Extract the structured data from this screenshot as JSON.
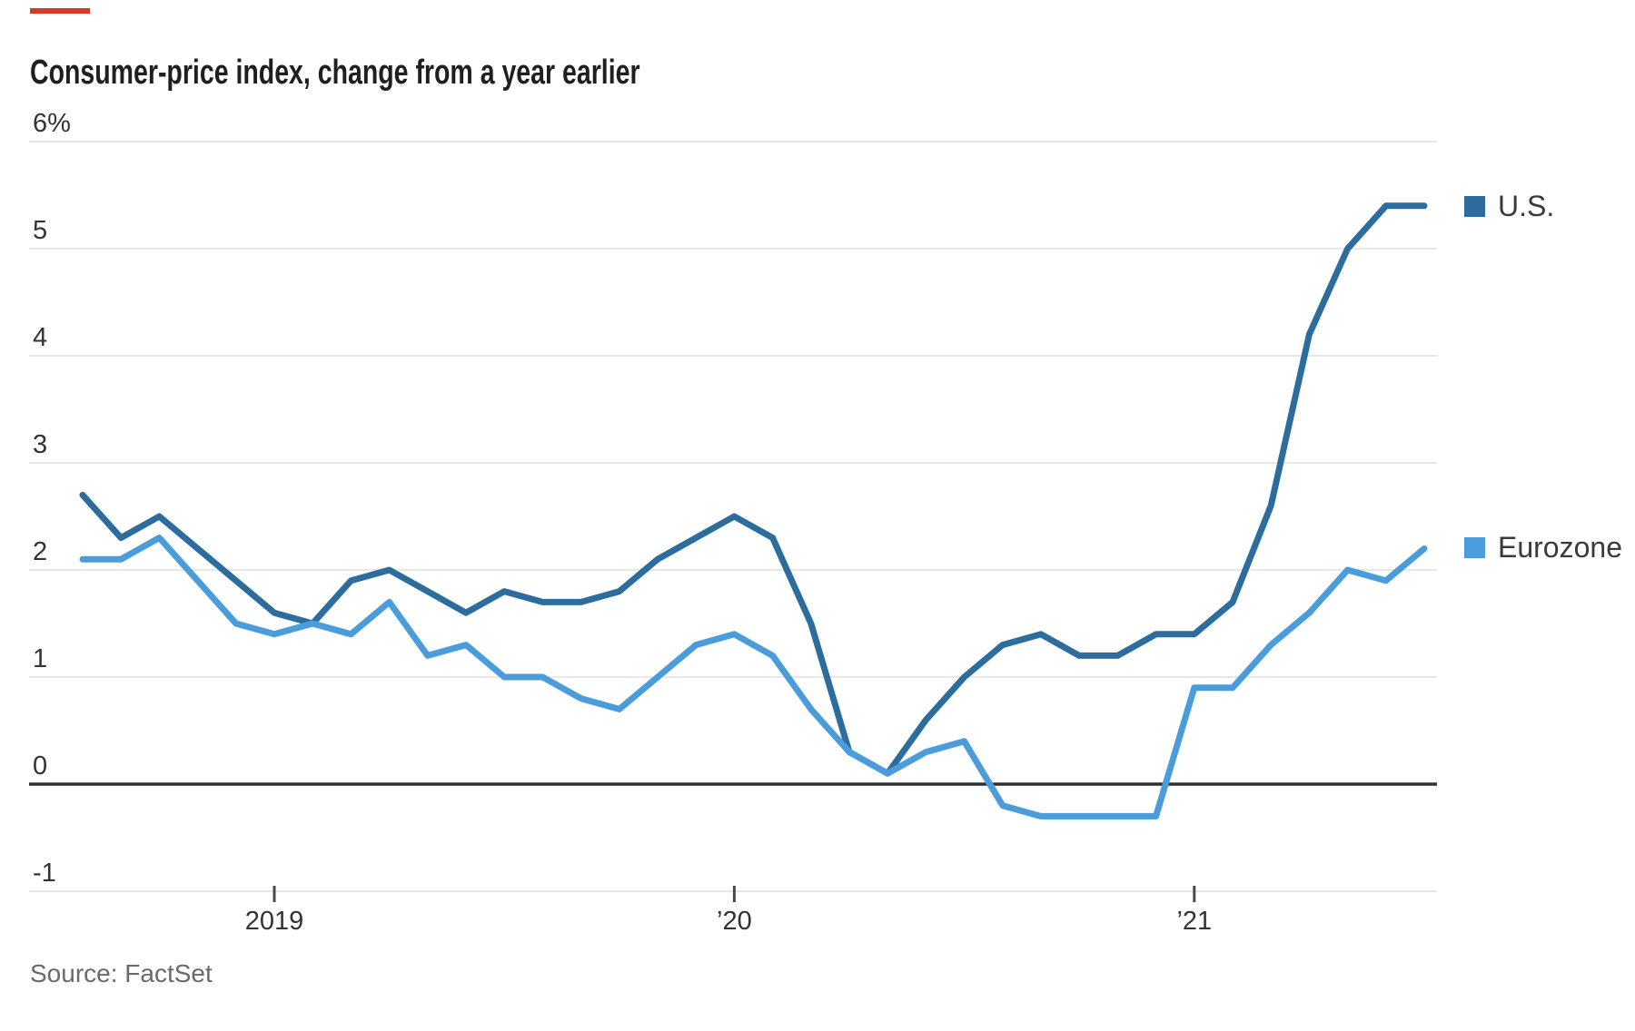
{
  "accent_bar": {
    "color": "#d63a2a"
  },
  "chart_data": {
    "type": "line",
    "title": "Consumer-price index, change from a year earlier",
    "x": [
      "2018-08",
      "2018-09",
      "2018-10",
      "2018-11",
      "2018-12",
      "2019-01",
      "2019-02",
      "2019-03",
      "2019-04",
      "2019-05",
      "2019-06",
      "2019-07",
      "2019-08",
      "2019-09",
      "2019-10",
      "2019-11",
      "2019-12",
      "2020-01",
      "2020-02",
      "2020-03",
      "2020-04",
      "2020-05",
      "2020-06",
      "2020-07",
      "2020-08",
      "2020-09",
      "2020-10",
      "2020-11",
      "2020-12",
      "2021-01",
      "2021-02",
      "2021-03",
      "2021-04",
      "2021-05",
      "2021-06",
      "2021-07"
    ],
    "series": [
      {
        "name": "U.S.",
        "color": "#2d6d9e",
        "values": [
          2.7,
          2.3,
          2.5,
          2.2,
          1.9,
          1.6,
          1.5,
          1.9,
          2.0,
          1.8,
          1.6,
          1.8,
          1.7,
          1.7,
          1.8,
          2.1,
          2.3,
          2.5,
          2.3,
          1.5,
          0.3,
          0.1,
          0.6,
          1.0,
          1.3,
          1.4,
          1.2,
          1.2,
          1.4,
          1.4,
          1.7,
          2.6,
          4.2,
          5.0,
          5.4,
          5.4
        ]
      },
      {
        "name": "Eurozone",
        "color": "#4a9dda",
        "values": [
          2.1,
          2.1,
          2.3,
          1.9,
          1.5,
          1.4,
          1.5,
          1.4,
          1.7,
          1.2,
          1.3,
          1.0,
          1.0,
          0.8,
          0.7,
          1.0,
          1.3,
          1.4,
          1.2,
          0.7,
          0.3,
          0.1,
          0.3,
          0.4,
          -0.2,
          -0.3,
          -0.3,
          -0.3,
          -0.3,
          0.9,
          0.9,
          1.3,
          1.6,
          2.0,
          1.9,
          2.2
        ]
      }
    ],
    "ylim": [
      -1,
      6
    ],
    "yticks": [
      {
        "value": 6,
        "label": "6%"
      },
      {
        "value": 5,
        "label": "5"
      },
      {
        "value": 4,
        "label": "4"
      },
      {
        "value": 3,
        "label": "3"
      },
      {
        "value": 2,
        "label": "2"
      },
      {
        "value": 1,
        "label": "1"
      },
      {
        "value": 0,
        "label": "0"
      },
      {
        "value": -1,
        "label": "-1"
      }
    ],
    "xticks": [
      {
        "x": "2019-01",
        "label": "2019"
      },
      {
        "x": "2020-01",
        "label": "’20"
      },
      {
        "x": "2021-01",
        "label": "’21"
      }
    ],
    "grid": "horizontal",
    "zero_baseline": true,
    "legend_position": "right"
  },
  "source": {
    "text": "Source: FactSet"
  }
}
